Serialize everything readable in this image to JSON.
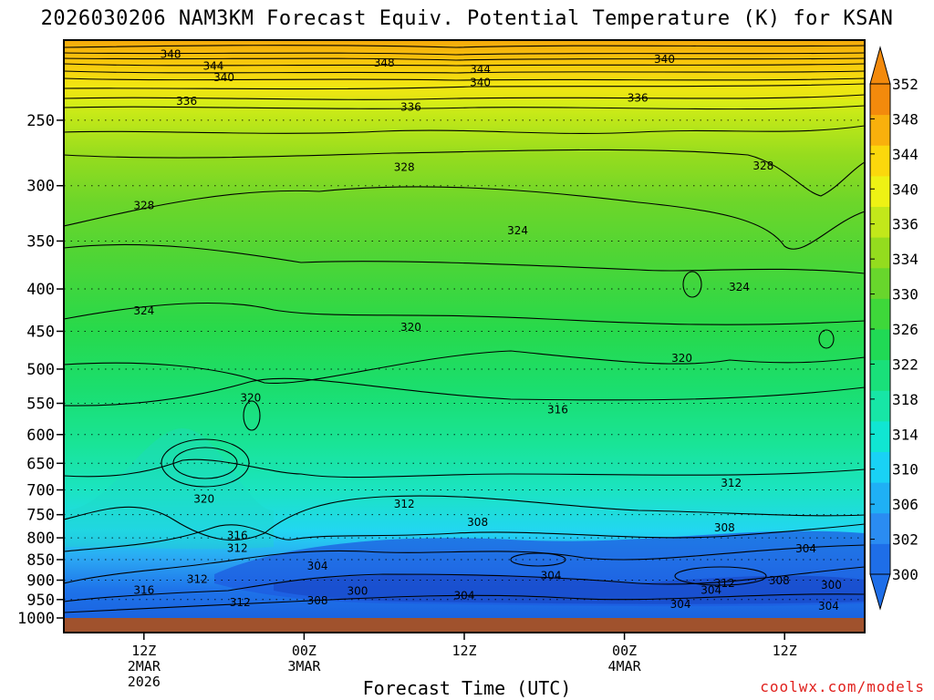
{
  "title": "2026030206 NAM3KM Forecast Equiv. Potential Temperature (K) for KSAN",
  "credit": "coolwx.com/models",
  "colors": {
    "ground": "#a0522d",
    "accent_credit": "#e0201c",
    "colorbar": [
      "#1e6ee8",
      "#2a8cf2",
      "#1fb0f5",
      "#19d2f5",
      "#10e6d2",
      "#17e6a6",
      "#19e07a",
      "#20da55",
      "#3ed83a",
      "#68d62c",
      "#94dc1e",
      "#c2e81a",
      "#eef214",
      "#fbd80c",
      "#f9b00c",
      "#f38a0c"
    ]
  },
  "chart_data": {
    "type": "heatmap",
    "title": "2026030206 NAM3KM Forecast Equiv. Potential Temperature (K) for KSAN",
    "xlabel": "Forecast Time (UTC)",
    "ylabel": "",
    "variable": "Equivalent Potential Temperature (K)",
    "y_axis": {
      "scale": "log-pressure (hPa)",
      "range": [
        1000,
        200
      ],
      "ticks": [
        250,
        300,
        350,
        400,
        450,
        500,
        550,
        600,
        650,
        700,
        750,
        800,
        850,
        900,
        950,
        1000
      ]
    },
    "x_axis": {
      "ticks": [
        {
          "hours": 6,
          "label": [
            "12Z",
            "2MAR",
            "2026"
          ]
        },
        {
          "hours": 18,
          "label": [
            "00Z",
            "3MAR"
          ]
        },
        {
          "hours": 30,
          "label": [
            "12Z"
          ]
        },
        {
          "hours": 42,
          "label": [
            "00Z",
            "4MAR"
          ]
        },
        {
          "hours": 54,
          "label": [
            "12Z"
          ]
        }
      ],
      "range_hours": [
        0,
        60
      ]
    },
    "grid": true,
    "colorbar": {
      "labels": [
        300,
        302,
        306,
        310,
        314,
        318,
        322,
        326,
        330,
        334,
        336,
        340,
        344,
        348,
        352
      ]
    },
    "contour_labels": [
      {
        "hours": 8.0,
        "p": 208,
        "label": "348"
      },
      {
        "hours": 11.2,
        "p": 215,
        "label": "344"
      },
      {
        "hours": 12.0,
        "p": 222,
        "label": "340"
      },
      {
        "hours": 9.2,
        "p": 237,
        "label": "336"
      },
      {
        "hours": 24.0,
        "p": 213,
        "label": "348"
      },
      {
        "hours": 31.2,
        "p": 217,
        "label": "344"
      },
      {
        "hours": 31.2,
        "p": 225,
        "label": "340"
      },
      {
        "hours": 45.0,
        "p": 211,
        "label": "340"
      },
      {
        "hours": 43.0,
        "p": 235,
        "label": "336"
      },
      {
        "hours": 26.0,
        "p": 241,
        "label": "336"
      },
      {
        "hours": 25.5,
        "p": 285,
        "label": "328"
      },
      {
        "hours": 52.4,
        "p": 284,
        "label": "328"
      },
      {
        "hours": 6.0,
        "p": 317,
        "label": "328"
      },
      {
        "hours": 34.0,
        "p": 340,
        "label": "324"
      },
      {
        "hours": 50.6,
        "p": 398,
        "label": "324"
      },
      {
        "hours": 6.0,
        "p": 425,
        "label": "324"
      },
      {
        "hours": 26.0,
        "p": 445,
        "label": "320"
      },
      {
        "hours": 46.3,
        "p": 485,
        "label": "320"
      },
      {
        "hours": 14.0,
        "p": 542,
        "label": "320"
      },
      {
        "hours": 37.0,
        "p": 560,
        "label": "316"
      },
      {
        "hours": 50.0,
        "p": 687,
        "label": "312"
      },
      {
        "hours": 10.5,
        "p": 718,
        "label": "320"
      },
      {
        "hours": 25.5,
        "p": 728,
        "label": "312"
      },
      {
        "hours": 31.0,
        "p": 766,
        "label": "308"
      },
      {
        "hours": 49.5,
        "p": 778,
        "label": "308"
      },
      {
        "hours": 13.0,
        "p": 795,
        "label": "316"
      },
      {
        "hours": 13.0,
        "p": 824,
        "label": "312"
      },
      {
        "hours": 55.6,
        "p": 825,
        "label": "304"
      },
      {
        "hours": 19.0,
        "p": 865,
        "label": "304"
      },
      {
        "hours": 36.5,
        "p": 889,
        "label": "304"
      },
      {
        "hours": 10.0,
        "p": 898,
        "label": "312"
      },
      {
        "hours": 6.0,
        "p": 926,
        "label": "316"
      },
      {
        "hours": 13.2,
        "p": 958,
        "label": "312"
      },
      {
        "hours": 19.0,
        "p": 953,
        "label": "308"
      },
      {
        "hours": 22.0,
        "p": 928,
        "label": "300"
      },
      {
        "hours": 30.0,
        "p": 940,
        "label": "304"
      },
      {
        "hours": 49.5,
        "p": 908,
        "label": "312"
      },
      {
        "hours": 53.6,
        "p": 901,
        "label": "308"
      },
      {
        "hours": 48.5,
        "p": 925,
        "label": "304"
      },
      {
        "hours": 57.5,
        "p": 913,
        "label": "300"
      },
      {
        "hours": 46.2,
        "p": 963,
        "label": "304"
      },
      {
        "hours": 57.3,
        "p": 968,
        "label": "304"
      }
    ]
  }
}
